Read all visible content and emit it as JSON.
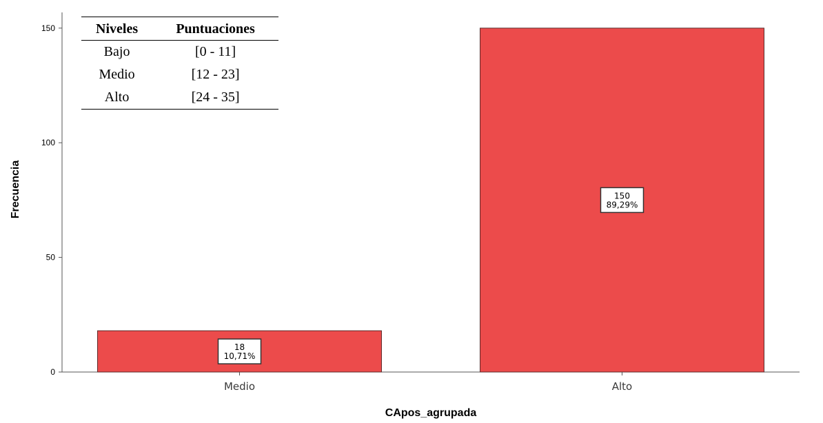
{
  "chart_data": {
    "type": "bar",
    "categories": [
      "Medio",
      "Alto"
    ],
    "values": [
      18,
      150
    ],
    "data_labels": [
      {
        "count": "18",
        "percent": "10,71%"
      },
      {
        "count": "150",
        "percent": "89,29%"
      }
    ],
    "xlabel": "CApos_agrupada",
    "ylabel": "Frecuencia",
    "ylim": [
      0,
      155
    ],
    "yticks": [
      0,
      50,
      100,
      150
    ],
    "ytick_labels": [
      "0",
      "50",
      "100",
      "150"
    ],
    "grid": false,
    "bar_color": "#ec4b4b",
    "bar_edge_color": "#5a2a2a"
  },
  "legend_table": {
    "headers": [
      "Niveles",
      "Puntuaciones"
    ],
    "rows": [
      [
        "Bajo",
        "[0 - 11]"
      ],
      [
        "Medio",
        "[12 - 23]"
      ],
      [
        "Alto",
        "[24 - 35]"
      ]
    ]
  }
}
